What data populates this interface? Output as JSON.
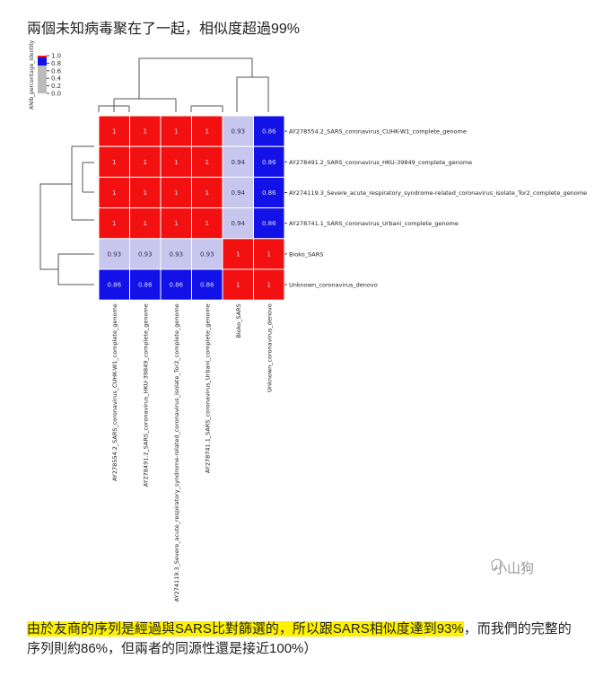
{
  "heading": "兩個未知病毒聚在了一起，相似度超過99%",
  "chart_data": {
    "type": "heatmap",
    "categories": [
      "AY278554.2_SARS_coronavirus_CUHK-W1_complete_genome",
      "AY278491.2_SARS_coronavirus_HKU-39849_complete_genome",
      "AY274119.3_Severe_acute_respiratory_syndrome-related_coronavirus_isolate_Tor2_complete_genome",
      "AY278741.1_SARS_coronavirus_Urbani_complete_genome",
      "Bioko_SARS",
      "Unknown_coronavirus_denovo"
    ],
    "values": [
      [
        1,
        1,
        1,
        1,
        0.93,
        0.86
      ],
      [
        1,
        1,
        1,
        1,
        0.94,
        0.86
      ],
      [
        1,
        1,
        1,
        1,
        0.94,
        0.86
      ],
      [
        1,
        1,
        1,
        1,
        0.94,
        0.86
      ],
      [
        0.93,
        0.93,
        0.93,
        0.93,
        1,
        1
      ],
      [
        0.86,
        0.86,
        0.86,
        0.86,
        1,
        1
      ]
    ],
    "colors": [
      "#1212e8",
      "#c6c6ee",
      "#f21010"
    ],
    "colorbar": {
      "label": "ANIb_percentage_identity",
      "lim": [
        0,
        1
      ],
      "ticks": [
        {
          "value": 1,
          "label": "1.0"
        },
        {
          "value": 0.8,
          "label": "0.8"
        },
        {
          "value": 0.6,
          "label": "0.6"
        },
        {
          "value": 0.4,
          "label": "0.4"
        },
        {
          "value": 0.2,
          "label": "0.2"
        },
        {
          "value": 0,
          "label": "0.0"
        }
      ]
    }
  },
  "watermark": "小山狗",
  "caption": {
    "highlight": "由於友商的序列是經過與SARS比對篩選的，所以跟SARS相似度達到93%",
    "rest": "，而我們的完整的序列則約86%，但兩者的同源性還是接近100%）"
  }
}
